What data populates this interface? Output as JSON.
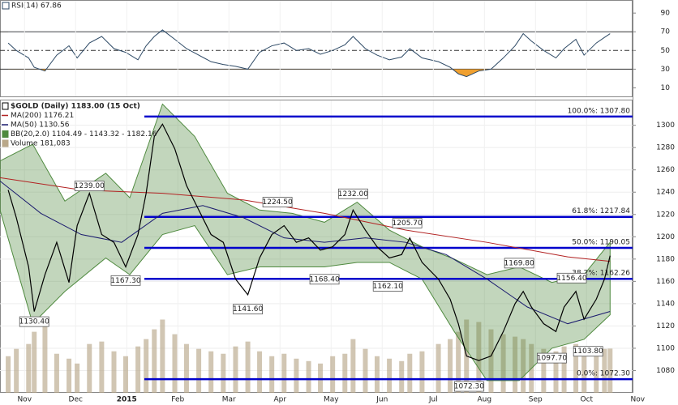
{
  "chart_data": [
    {
      "type": "line",
      "x": [
        -0.32,
        -0.16,
        0.08,
        0.19,
        0.4,
        0.63,
        0.87,
        1.03,
        1.27,
        1.51,
        1.75,
        1.98,
        2.22,
        2.38,
        2.54,
        2.7,
        2.94,
        3.17,
        3.41,
        3.65,
        3.89,
        4.13,
        4.37,
        4.6,
        4.84,
        5.08,
        5.32,
        5.56,
        5.79,
        6.03,
        6.27,
        6.43,
        6.67,
        6.9,
        7.14,
        7.38,
        7.54,
        7.78,
        8.1,
        8.33,
        8.49,
        8.65,
        8.89,
        9.13,
        9.37,
        9.6,
        9.76,
        9.92,
        10.16,
        10.4,
        10.56,
        10.79,
        10.95,
        11.19,
        11.35,
        11.46
      ],
      "xlim": [
        -0.48,
        11.9
      ],
      "ylim": [
        0,
        104
      ],
      "yticks": [
        10,
        30,
        50,
        70,
        90
      ],
      "bands": [
        30,
        70
      ],
      "midline": 50,
      "below_color": "#f0a030",
      "above_color": "#8fb0d0",
      "series": [
        {
          "name": "RSI(14) 67.86",
          "color": "#2e4a66",
          "values": [
            58,
            50,
            42,
            32,
            28,
            45,
            55,
            42,
            58,
            65,
            52,
            48,
            40,
            55,
            65,
            72,
            62,
            52,
            45,
            38,
            35,
            33,
            30,
            48,
            55,
            58,
            50,
            52,
            46,
            50,
            56,
            65,
            52,
            45,
            40,
            43,
            52,
            42,
            38,
            32,
            25,
            22,
            28,
            30,
            42,
            55,
            68,
            60,
            50,
            42,
            52,
            62,
            45,
            58,
            64,
            68
          ]
        }
      ]
    },
    {
      "type": "line",
      "x": [
        -0.32,
        -0.16,
        0.08,
        0.19,
        0.4,
        0.63,
        0.87,
        1.03,
        1.27,
        1.51,
        1.75,
        1.98,
        2.22,
        2.38,
        2.54,
        2.7,
        2.94,
        3.17,
        3.41,
        3.65,
        3.89,
        4.13,
        4.37,
        4.6,
        4.84,
        5.08,
        5.32,
        5.56,
        5.79,
        6.03,
        6.27,
        6.43,
        6.67,
        6.9,
        7.14,
        7.38,
        7.54,
        7.78,
        8.1,
        8.33,
        8.49,
        8.65,
        8.89,
        9.13,
        9.37,
        9.6,
        9.76,
        9.92,
        10.16,
        10.4,
        10.56,
        10.79,
        10.95,
        11.19,
        11.35,
        11.46
      ],
      "xlim": [
        -0.48,
        11.9
      ],
      "xticks": [
        {
          "value": 0,
          "label": "Nov"
        },
        {
          "value": 1,
          "label": "Dec"
        },
        {
          "value": 2,
          "label": "2015"
        },
        {
          "value": 3,
          "label": "Feb"
        },
        {
          "value": 4,
          "label": "Mar"
        },
        {
          "value": 5,
          "label": "Apr"
        },
        {
          "value": 6,
          "label": "May"
        },
        {
          "value": 7,
          "label": "Jun"
        },
        {
          "value": 8,
          "label": "Jul"
        },
        {
          "value": 9,
          "label": "Aug"
        },
        {
          "value": 10,
          "label": "Sep"
        },
        {
          "value": 11,
          "label": "Oct"
        },
        {
          "value": 12,
          "label": "Nov"
        }
      ],
      "ylim": [
        1060,
        1323
      ],
      "yticks": [
        1080,
        1100,
        1120,
        1140,
        1160,
        1180,
        1200,
        1220,
        1240,
        1260,
        1280,
        1300
      ],
      "grid": true,
      "series": [
        {
          "name": "$GOLD (Daily) 1183.00 (15 Oct)",
          "color": "#000000",
          "values": [
            1242,
            1217,
            1173,
            1133,
            1166,
            1195,
            1159,
            1210,
            1239,
            1202,
            1195,
            1173,
            1202,
            1239,
            1290,
            1301,
            1279,
            1246,
            1224,
            1202,
            1195,
            1162,
            1148,
            1181,
            1202,
            1210,
            1195,
            1199,
            1188,
            1191,
            1202,
            1224,
            1206,
            1191,
            1181,
            1184,
            1199,
            1177,
            1162,
            1144,
            1122,
            1093,
            1089,
            1093,
            1115,
            1140,
            1151,
            1137,
            1122,
            1115,
            1137,
            1151,
            1126,
            1144,
            1162,
            1183
          ]
        },
        {
          "name": "MA(200) 1176.21",
          "color": "#b22222",
          "x": [
            -0.48,
            1.11,
            2.7,
            4.29,
            5.87,
            7.46,
            9.05,
            10.63,
            11.46
          ],
          "values": [
            1253,
            1242,
            1239,
            1233,
            1221,
            1206,
            1195,
            1182,
            1178
          ]
        },
        {
          "name": "MA(50) 1130.56",
          "color": "#1a1a6e",
          "x": [
            -0.48,
            0.32,
            1.11,
            1.9,
            2.7,
            3.49,
            4.29,
            5.08,
            5.87,
            6.67,
            7.46,
            8.25,
            9.05,
            9.84,
            10.63,
            11.46
          ],
          "values": [
            1250,
            1221,
            1202,
            1195,
            1221,
            1228,
            1217,
            1199,
            1195,
            1199,
            1195,
            1184,
            1162,
            1137,
            1122,
            1133
          ]
        }
      ],
      "bollinger": {
        "name": "BB(20,2.0) 1104.49 - 1143.32 - 1182.16",
        "color": "#4f8a3f",
        "x": [
          -0.48,
          0.16,
          0.79,
          1.59,
          2.06,
          2.7,
          3.33,
          3.97,
          4.6,
          5.24,
          5.87,
          6.51,
          7.14,
          7.78,
          8.41,
          9.05,
          9.68,
          10.32,
          10.95,
          11.46
        ],
        "upper": [
          1268,
          1283,
          1232,
          1257,
          1235,
          1319,
          1290,
          1239,
          1224,
          1221,
          1213,
          1231,
          1206,
          1191,
          1180,
          1166,
          1173,
          1159,
          1166,
          1195
        ],
        "lower": [
          1224,
          1122,
          1151,
          1181,
          1166,
          1202,
          1210,
          1166,
          1173,
          1173,
          1173,
          1177,
          1177,
          1162,
          1115,
          1071,
          1071,
          1100,
          1108,
          1130
        ]
      },
      "volume": {
        "name": "Volume 181,083",
        "color": "#b9a88a",
        "ylim": [
          0,
          1200000
        ],
        "values": [
          150000,
          180000,
          200000,
          250000,
          280000,
          160000,
          140000,
          120000,
          200000,
          210000,
          170000,
          150000,
          190000,
          220000,
          260000,
          300000,
          240000,
          200000,
          180000,
          170000,
          160000,
          190000,
          210000,
          170000,
          150000,
          160000,
          140000,
          130000,
          120000,
          150000,
          160000,
          220000,
          180000,
          150000,
          140000,
          130000,
          160000,
          170000,
          200000,
          220000,
          250000,
          300000,
          290000,
          260000,
          240000,
          230000,
          220000,
          200000,
          180000,
          170000,
          190000,
          200000,
          170000,
          160000,
          180000,
          181083
        ]
      },
      "fib_color": "#0000cc",
      "fib_levels": [
        {
          "value": 1307.8,
          "label": "100.0%: 1307.80"
        },
        {
          "value": 1217.84,
          "label": "61.8%: 1217.84"
        },
        {
          "value": 1190.05,
          "label": "50.0%: 1190.05"
        },
        {
          "value": 1162.26,
          "label": "38.2%: 1162.26"
        },
        {
          "value": 1072.3,
          "label": "0.0%: 1072.30"
        }
      ],
      "annotations": [
        {
          "x": 1.27,
          "value": 1239.0,
          "label": "1239.00",
          "position": "above"
        },
        {
          "x": 0.19,
          "value": 1130.4,
          "label": "1130.40",
          "position": "below"
        },
        {
          "x": 1.98,
          "value": 1167.3,
          "label": "1167.30",
          "position": "below"
        },
        {
          "x": 4.95,
          "value": 1224.5,
          "label": "1224.50",
          "position": "above"
        },
        {
          "x": 4.37,
          "value": 1141.6,
          "label": "1141.60",
          "position": "below"
        },
        {
          "x": 6.43,
          "value": 1232.0,
          "label": "1232.00",
          "position": "above"
        },
        {
          "x": 5.87,
          "value": 1168.4,
          "label": "1168.40",
          "position": "below"
        },
        {
          "x": 7.11,
          "value": 1162.1,
          "label": "1162.10",
          "position": "below"
        },
        {
          "x": 7.49,
          "value": 1205.7,
          "label": "1205.70",
          "position": "above"
        },
        {
          "x": 8.7,
          "value": 1072.3,
          "label": "1072.30",
          "position": "below"
        },
        {
          "x": 9.68,
          "value": 1169.8,
          "label": "1169.80",
          "position": "above"
        },
        {
          "x": 10.71,
          "value": 1156.4,
          "label": "1156.40",
          "position": "above"
        },
        {
          "x": 10.32,
          "value": 1097.7,
          "label": "1097.70",
          "position": "below"
        },
        {
          "x": 11.03,
          "value": 1103.8,
          "label": "1103.80",
          "position": "below"
        }
      ]
    }
  ]
}
